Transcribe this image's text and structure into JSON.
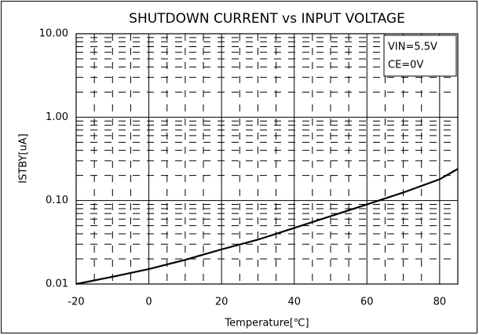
{
  "chart_data": {
    "type": "line",
    "title": "SHUTDOWN CURRENT vs INPUT VOLTAGE",
    "x_label": "Temperature[℃]",
    "y_label": "ISTBY[uA]",
    "annotations": [
      "VIN=5.5V",
      "CE=0V"
    ],
    "x": [
      -20,
      -10,
      0,
      10,
      20,
      30,
      40,
      50,
      60,
      70,
      80,
      85
    ],
    "series": [
      {
        "name": "ISTBY",
        "color": "#000000",
        "values": [
          0.01,
          0.0122,
          0.0151,
          0.0195,
          0.026,
          0.034,
          0.047,
          0.065,
          0.09,
          0.125,
          0.18,
          0.24
        ]
      }
    ],
    "xlim": [
      -20,
      85
    ],
    "ylim": [
      0.01,
      10
    ],
    "y_log": true,
    "xticks": [
      -20,
      0,
      20,
      40,
      60,
      80
    ],
    "yticks": [
      {
        "value": 0.01,
        "label": "0.01"
      },
      {
        "value": 0.1,
        "label": "0.10"
      },
      {
        "value": 1,
        "label": "1.00"
      },
      {
        "value": 10,
        "label": "10.00"
      }
    ],
    "x_minor_ticks": [
      -15,
      -10,
      -5,
      5,
      10,
      15,
      25,
      30,
      35,
      45,
      50,
      55,
      65,
      70,
      75
    ],
    "y_minor_ticks": [
      0.02,
      0.03,
      0.04,
      0.05,
      0.06,
      0.07,
      0.08,
      0.09,
      0.2,
      0.3,
      0.4,
      0.5,
      0.6,
      0.7,
      0.8,
      0.9,
      2,
      3,
      4,
      5,
      6,
      7,
      8,
      9
    ],
    "grid": true
  }
}
